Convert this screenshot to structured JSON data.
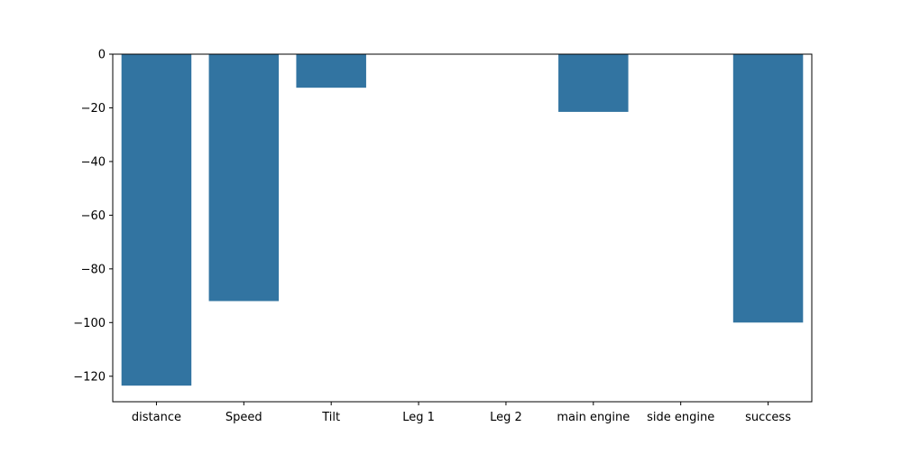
{
  "chart_data": {
    "type": "bar",
    "title": "",
    "xlabel": "",
    "ylabel": "",
    "categories": [
      "distance",
      "Speed",
      "Tilt",
      "Leg 1",
      "Leg 2",
      "main engine",
      "side engine",
      "success"
    ],
    "values": [
      -123.5,
      -92,
      -12.5,
      0,
      0,
      -21.5,
      0,
      -100
    ],
    "ylim": [
      -129.5,
      0
    ],
    "yticks": [
      0,
      -20,
      -40,
      -60,
      -80,
      -100,
      -120
    ],
    "ytick_labels": [
      "0",
      "−20",
      "−40",
      "−60",
      "−80",
      "−100",
      "−120"
    ],
    "bar_color": "#3274a1",
    "grid": false,
    "legend": "none"
  }
}
